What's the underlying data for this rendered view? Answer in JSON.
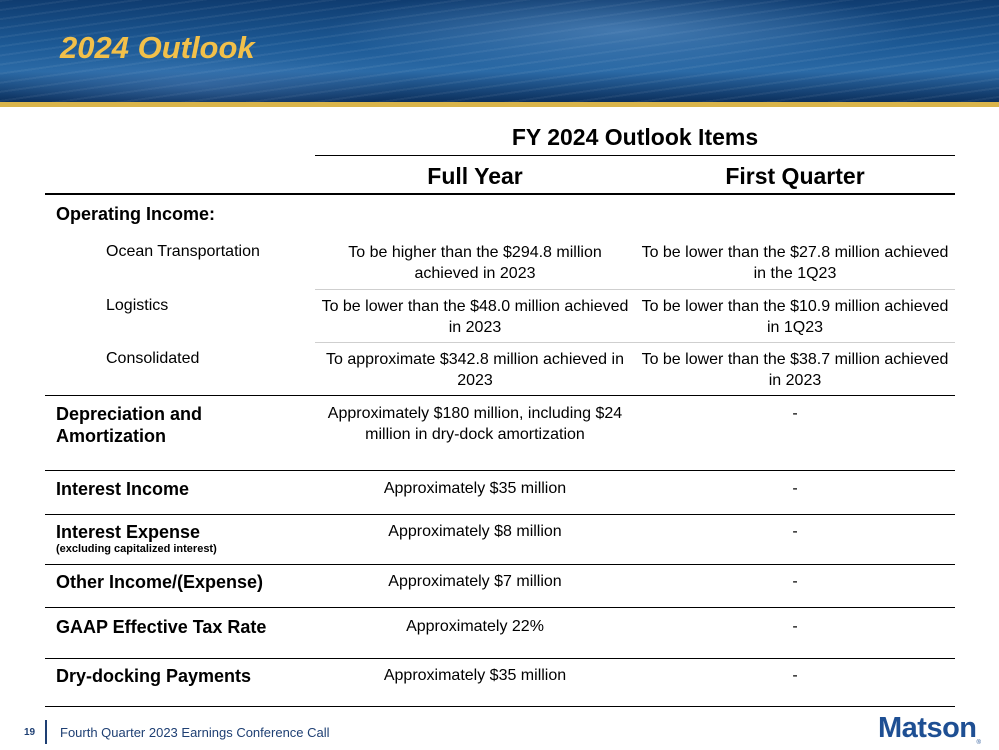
{
  "title": "2024 Outlook",
  "table": {
    "group_header": "FY 2024 Outlook Items",
    "columns": [
      "Full Year",
      "First Quarter"
    ],
    "operating_income_label": "Operating Income:",
    "rows": [
      {
        "label": "Ocean Transportation",
        "full_year": "To be higher than the $294.8 million achieved in 2023",
        "first_quarter": "To be lower than the $27.8 million achieved in the 1Q23"
      },
      {
        "label": "Logistics",
        "full_year": "To be lower than the $48.0 million achieved in 2023",
        "first_quarter": "To be lower than the $10.9 million achieved in 1Q23"
      },
      {
        "label": "Consolidated",
        "full_year": "To approximate $342.8 million achieved in 2023",
        "first_quarter": "To be lower than the $38.7 million achieved in 2023"
      },
      {
        "label": "Depreciation and Amortization",
        "full_year": "Approximately $180 million, including $24 million in dry-dock amortization",
        "first_quarter": "-"
      },
      {
        "label": "Interest Income",
        "full_year": "Approximately $35 million",
        "first_quarter": "-"
      },
      {
        "label": "Interest Expense",
        "note": "(excluding capitalized interest)",
        "full_year": "Approximately $8 million",
        "first_quarter": "-"
      },
      {
        "label": "Other Income/(Expense)",
        "full_year": "Approximately $7 million",
        "first_quarter": "-"
      },
      {
        "label": "GAAP Effective Tax Rate",
        "full_year": "Approximately 22%",
        "first_quarter": "-"
      },
      {
        "label": "Dry-docking Payments",
        "full_year": "Approximately $35 million",
        "first_quarter": "-"
      }
    ]
  },
  "footer": {
    "page_number": "19",
    "text": "Fourth Quarter 2023 Earnings Conference Call",
    "logo": "Matson",
    "logo_mark": "®"
  }
}
